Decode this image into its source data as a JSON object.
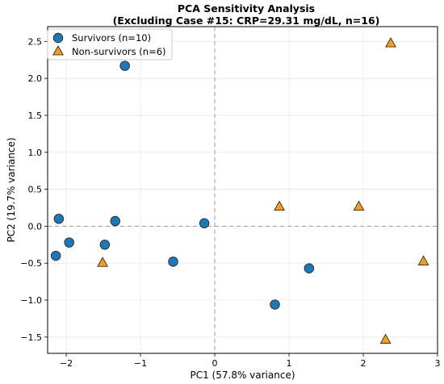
{
  "chart_data": {
    "type": "scatter",
    "title": "PCA Sensitivity Analysis",
    "subtitle": "(Excluding Case #15: CRP=29.31 mg/dL, n=16)",
    "xlabel": "PC1 (57.8% variance)",
    "ylabel": "PC2 (19.7% variance)",
    "xlim": [
      -2.25,
      3.0
    ],
    "ylim": [
      -1.72,
      2.7
    ],
    "xticks": [
      -2,
      -1,
      0,
      1,
      2,
      3
    ],
    "xtick_labels": [
      "−2",
      "−1",
      "0",
      "1",
      "2",
      "3"
    ],
    "yticks": [
      -1.5,
      -1.0,
      -0.5,
      0.0,
      0.5,
      1.0,
      1.5,
      2.0,
      2.5
    ],
    "ytick_labels": [
      "−1.5",
      "−1.0",
      "−0.5",
      "0.0",
      "0.5",
      "1.0",
      "1.5",
      "2.0",
      "2.5"
    ],
    "grid": true,
    "reference_lines": {
      "x": 0,
      "y": 0
    },
    "legend_position": "top-left",
    "series": [
      {
        "name": "Survivors (n=10)",
        "marker": "circle",
        "color": "#1f77b4",
        "points": [
          [
            -1.21,
            2.17
          ],
          [
            -2.1,
            0.1
          ],
          [
            -1.34,
            0.07
          ],
          [
            -0.14,
            0.04
          ],
          [
            -1.96,
            -0.22
          ],
          [
            -1.48,
            -0.25
          ],
          [
            -2.14,
            -0.4
          ],
          [
            -0.56,
            -0.48
          ],
          [
            1.27,
            -0.57
          ],
          [
            0.81,
            -1.06
          ]
        ]
      },
      {
        "name": "Non-survivors (n=6)",
        "marker": "triangle",
        "color": "#f0a020",
        "points": [
          [
            2.37,
            2.48
          ],
          [
            0.87,
            0.27
          ],
          [
            1.94,
            0.27
          ],
          [
            -1.51,
            -0.49
          ],
          [
            2.81,
            -0.47
          ],
          [
            2.3,
            -1.53
          ]
        ]
      }
    ]
  }
}
